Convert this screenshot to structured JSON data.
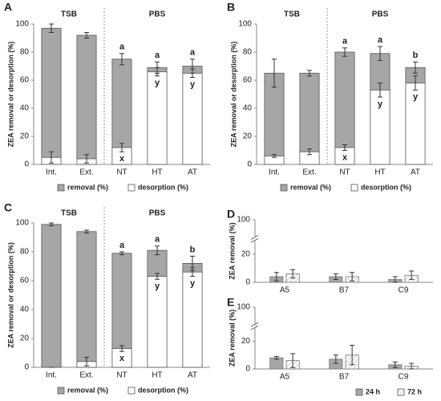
{
  "chart_data": [
    {
      "type": "bar_overlay",
      "label": "A",
      "ylabel": "ZEA removal or desorption (%)",
      "legend": "bottom",
      "groups": [
        {
          "name": "TSB",
          "categories": [
            "Int.",
            "Ext."
          ]
        },
        {
          "name": "PBS",
          "categories": [
            "NT",
            "HT",
            "AT"
          ]
        }
      ],
      "ylim": [
        0,
        100
      ],
      "yticks": [
        0,
        20,
        40,
        60,
        80,
        100
      ],
      "series": [
        {
          "name": "removal (%)",
          "color": "#a6a6a6",
          "values": [
            97,
            92,
            75,
            69,
            70
          ],
          "errors": [
            3,
            2,
            4,
            4,
            5
          ],
          "letters": [
            null,
            null,
            "a",
            "a",
            "a"
          ]
        },
        {
          "name": "desorption (%)",
          "color": "#ffffff",
          "values": [
            5,
            4,
            12,
            66,
            65
          ],
          "errors": [
            4,
            3,
            3,
            3,
            3
          ],
          "letters": [
            null,
            null,
            "x",
            "y",
            "y"
          ]
        }
      ]
    },
    {
      "type": "bar_overlay",
      "label": "B",
      "ylabel": "ZEA removal or desorption (%)",
      "legend": "bottom",
      "groups": [
        {
          "name": "TSB",
          "categories": [
            "Int.",
            "Ext."
          ]
        },
        {
          "name": "PBS",
          "categories": [
            "NT",
            "HT",
            "AT"
          ]
        }
      ],
      "ylim": [
        0,
        100
      ],
      "yticks": [
        0,
        20,
        40,
        60,
        80,
        100
      ],
      "series": [
        {
          "name": "removal (%)",
          "color": "#a6a6a6",
          "values": [
            65,
            65,
            80,
            79,
            69
          ],
          "errors": [
            10,
            2,
            3,
            5,
            4
          ],
          "letters": [
            null,
            null,
            "a",
            "a",
            "b"
          ]
        },
        {
          "name": "desorption (%)",
          "color": "#ffffff",
          "values": [
            6,
            9,
            12,
            53,
            58
          ],
          "errors": [
            1,
            2,
            2,
            5,
            5
          ],
          "letters": [
            null,
            null,
            "x",
            "y",
            "y"
          ]
        }
      ]
    },
    {
      "type": "bar_overlay",
      "label": "C",
      "ylabel": "ZEA removal or desorption (%)",
      "legend": "bottom",
      "groups": [
        {
          "name": "TSB",
          "categories": [
            "Int.",
            "Ext."
          ]
        },
        {
          "name": "PBS",
          "categories": [
            "NT",
            "HT",
            "AT"
          ]
        }
      ],
      "ylim": [
        0,
        100
      ],
      "yticks": [
        0,
        20,
        40,
        60,
        80,
        100
      ],
      "series": [
        {
          "name": "removal (%)",
          "color": "#a6a6a6",
          "values": [
            99,
            94,
            79,
            81,
            72
          ],
          "errors": [
            1,
            1,
            1,
            3,
            5
          ],
          "letters": [
            null,
            null,
            "a",
            "a",
            "b"
          ]
        },
        {
          "name": "desorption (%)",
          "color": "#ffffff",
          "values": [
            0,
            4,
            13,
            63,
            66
          ],
          "errors": [
            0,
            3,
            2,
            2,
            3
          ],
          "letters": [
            null,
            null,
            "x",
            "y",
            "y"
          ]
        }
      ]
    },
    {
      "type": "bar",
      "label": "D",
      "ylabel": "ZEA removal (%)",
      "axis_break": true,
      "categories": [
        "A5",
        "B7",
        "C9"
      ],
      "ylim": [
        0,
        100
      ],
      "yticks": [
        0,
        20,
        100
      ],
      "series": [
        {
          "color": "#a6a6a6",
          "values": [
            4,
            4,
            2
          ],
          "errors": [
            3,
            2,
            2
          ]
        },
        {
          "color": "#ffffff",
          "pattern": "hatch",
          "values": [
            6,
            4,
            5
          ],
          "errors": [
            3,
            3,
            3
          ]
        }
      ]
    },
    {
      "type": "bar",
      "label": "E",
      "ylabel": "ZEA removal (%)",
      "axis_break": true,
      "legend": "bottom-right",
      "categories": [
        "A5",
        "B7",
        "C9"
      ],
      "ylim": [
        0,
        100
      ],
      "yticks": [
        0,
        20,
        100
      ],
      "series": [
        {
          "name": "24 h",
          "color": "#a6a6a6",
          "values": [
            8,
            7,
            3
          ],
          "errors": [
            1,
            3,
            2
          ]
        },
        {
          "name": "72 h",
          "color": "#ffffff",
          "pattern": "hatch",
          "values": [
            6,
            10,
            2
          ],
          "errors": [
            5,
            7,
            2
          ]
        }
      ]
    }
  ]
}
